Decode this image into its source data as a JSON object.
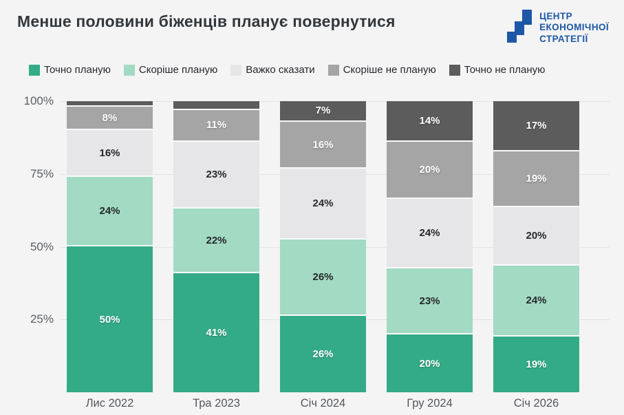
{
  "header": {
    "title": "Менше половини біженців планує повернутися",
    "logo": {
      "lines": [
        "ЦЕНТР",
        "ЕКОНОМІЧНОЇ",
        "СТРАТЕГІЇ"
      ],
      "color": "#1d57a6"
    }
  },
  "chart_data": {
    "type": "stacked_bar",
    "unit": "%",
    "stacked_to": 100,
    "legend_position": "top",
    "categories": [
      "Лис 2022",
      "Тра 2023",
      "Січ 2024",
      "Гру 2024",
      "Січ 2026"
    ],
    "y_axis": {
      "range": [
        0,
        100
      ],
      "grid": true,
      "ticks": [
        {
          "label": "100%",
          "value": 100
        },
        {
          "label": "75%",
          "value": 75
        },
        {
          "label": "50%",
          "value": 50
        },
        {
          "label": "25%",
          "value": 25
        }
      ]
    },
    "series": [
      {
        "name": "Точно планую",
        "color": "#34ab87",
        "text": "light",
        "values": [
          50,
          41,
          26,
          20,
          19
        ],
        "labels": [
          "50%",
          "41%",
          "26%",
          "20%",
          "19%"
        ]
      },
      {
        "name": "Скоріше планую",
        "color": "#a2dac3",
        "text": "dark",
        "values": [
          24,
          22,
          26,
          23,
          24
        ],
        "labels": [
          "24%",
          "22%",
          "26%",
          "23%",
          "24%"
        ]
      },
      {
        "name": "Важко сказати",
        "color": "#e6e6e8",
        "text": "dark",
        "values": [
          16,
          23,
          24,
          24,
          20
        ],
        "labels": [
          "16%",
          "23%",
          "24%",
          "24%",
          "20%"
        ]
      },
      {
        "name": "Скоріше не планую",
        "color": "#a5a5a5",
        "text": "light",
        "values": [
          8,
          11,
          16,
          20,
          19
        ],
        "labels": [
          "8%",
          "11%",
          "16%",
          "20%",
          "19%"
        ]
      },
      {
        "name": "Точно не планую",
        "color": "#5c5c5c",
        "text": "light",
        "values": [
          2,
          3,
          7,
          14,
          17
        ],
        "labels": [
          "",
          "",
          "7%",
          "14%",
          "17%"
        ]
      }
    ]
  }
}
